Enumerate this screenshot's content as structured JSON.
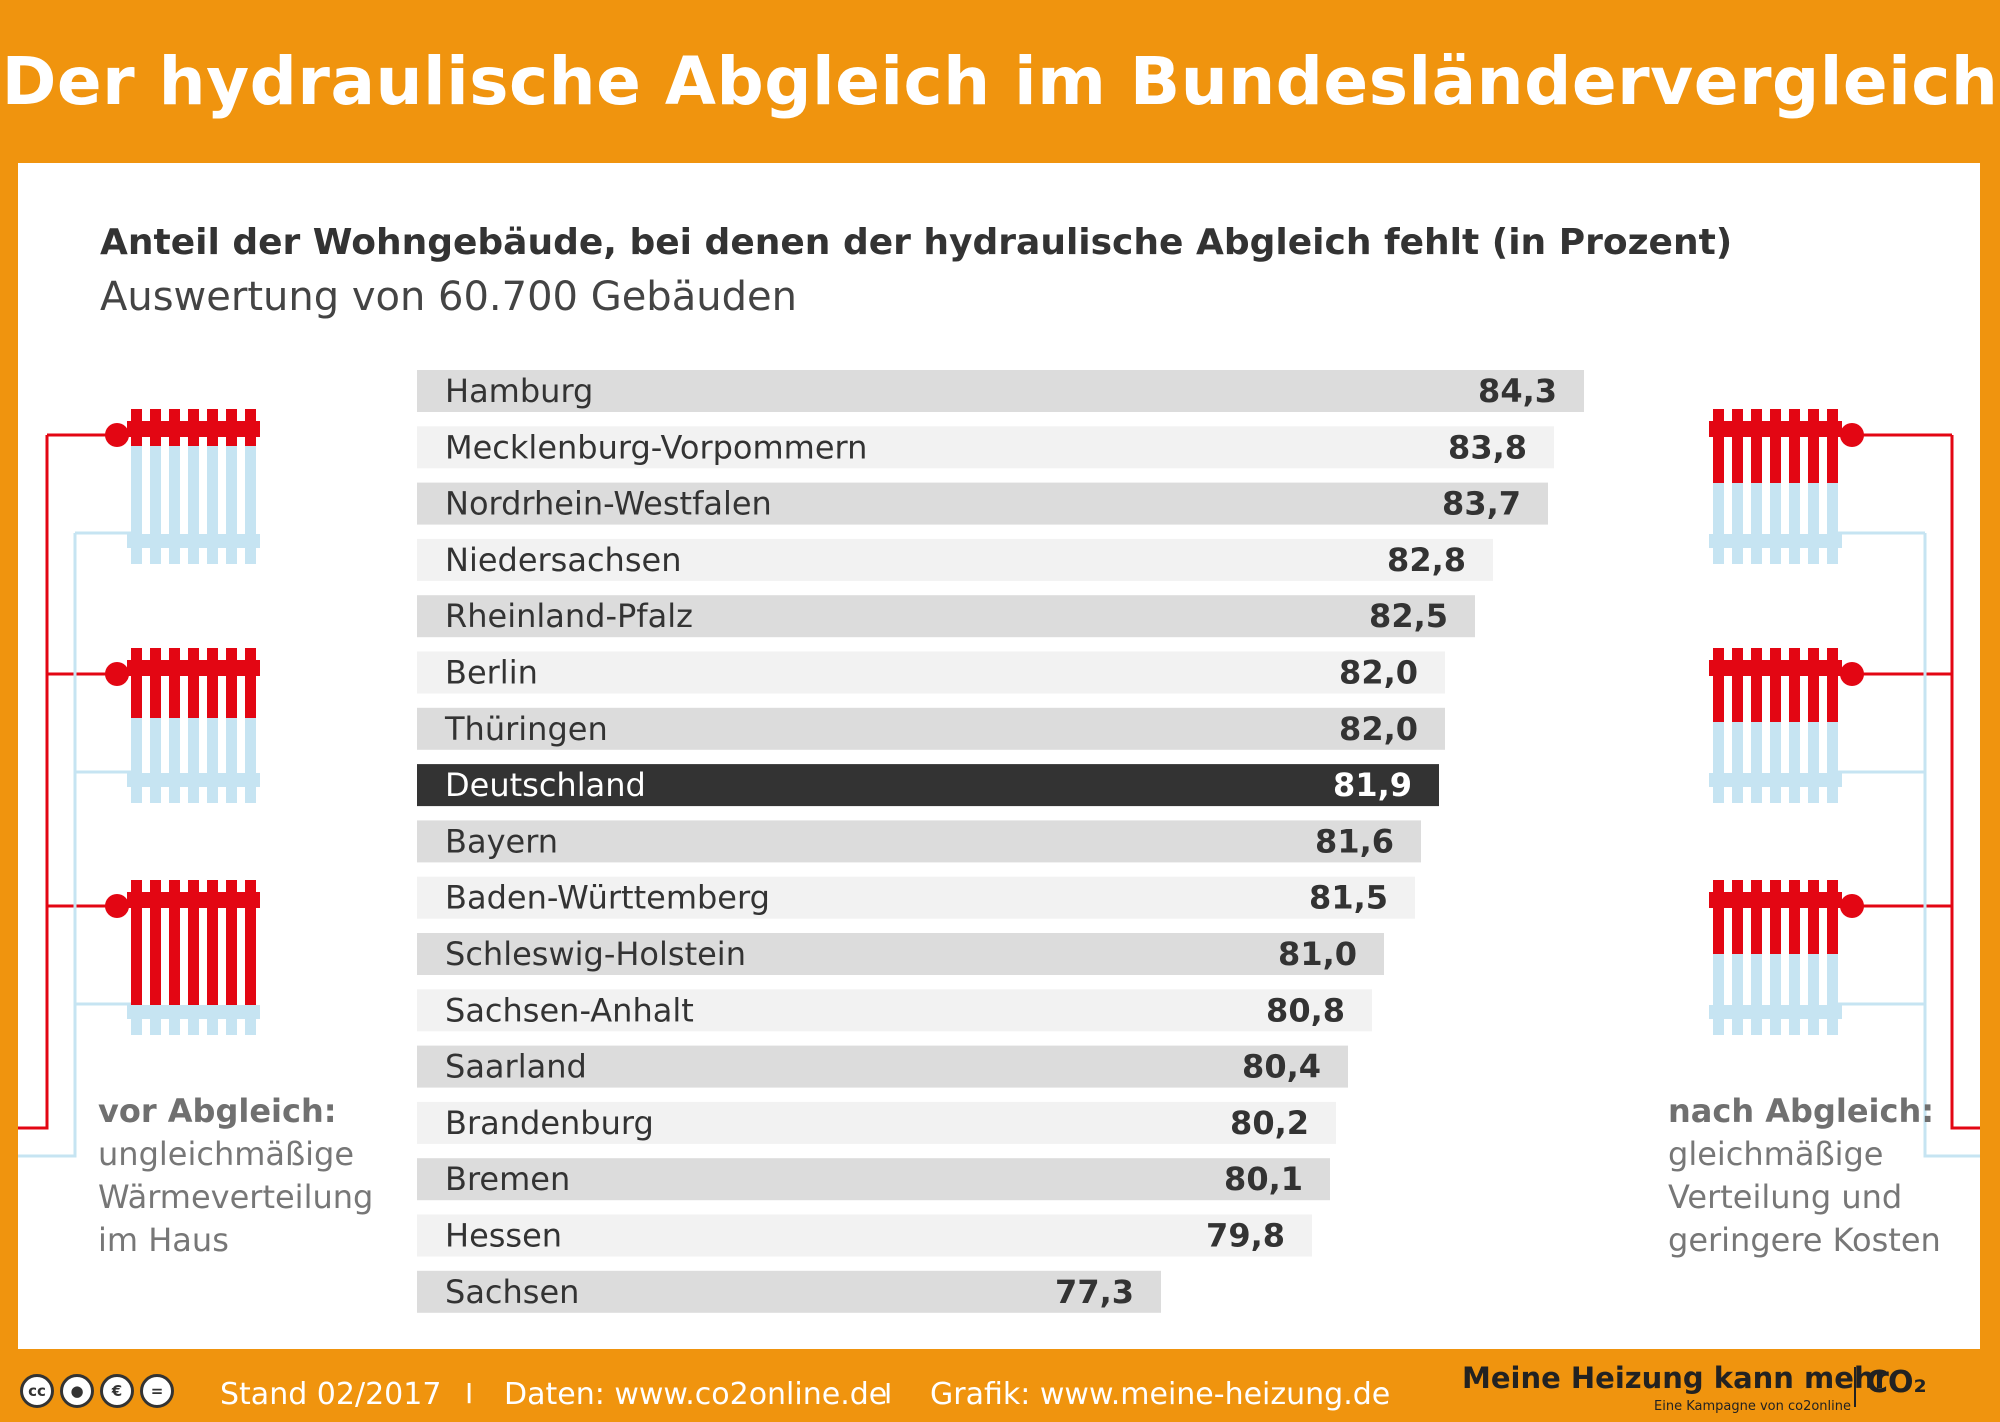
{
  "header": {
    "title": "Der hydraulische Abgleich im Bundesländervergleich"
  },
  "colors": {
    "orange": "#f0940e",
    "red": "#e30613",
    "light_blue": "#c6e4f2",
    "bar_gray": "#dcdcdc",
    "bar_light": "#f2f2f2",
    "highlight": "#333333"
  },
  "chart_data": {
    "type": "bar",
    "orientation": "horizontal",
    "title": "Anteil der Wohngebäude, bei denen der hydraulische Abgleich fehlt (in Prozent)",
    "subtitle": "Auswertung von 60.700 Gebäuden",
    "categories": [
      "Hamburg",
      "Mecklenburg-Vorpommern",
      "Nordrhein-Westfalen",
      "Niedersachsen",
      "Rheinland-Pfalz",
      "Berlin",
      "Thüringen",
      "Deutschland",
      "Bayern",
      "Baden-Württemberg",
      "Schleswig-Holstein",
      "Sachsen-Anhalt",
      "Saarland",
      "Brandenburg",
      "Bremen",
      "Hessen",
      "Sachsen"
    ],
    "values": [
      84.3,
      83.8,
      83.7,
      82.8,
      82.5,
      82.0,
      82.0,
      81.9,
      81.6,
      81.5,
      81.0,
      80.8,
      80.4,
      80.2,
      80.1,
      79.8,
      77.3
    ],
    "value_labels": [
      "84,3",
      "83,8",
      "83,7",
      "82,8",
      "82,5",
      "82,0",
      "82,0",
      "81,9",
      "81,6",
      "81,5",
      "81,0",
      "80,8",
      "80,4",
      "80,2",
      "80,1",
      "79,8",
      "77,3"
    ],
    "highlight": "Deutschland",
    "grid": false
  },
  "left_caption": {
    "head": "vor Abgleich:",
    "lines": [
      "ungleichmäßige",
      "Wärmeverteilung",
      "im Haus"
    ]
  },
  "right_caption": {
    "head": "nach Abgleich:",
    "lines": [
      "gleichmäßige",
      "Verteilung und",
      "geringere Kosten"
    ]
  },
  "footer": {
    "cc_icons": [
      "cc",
      "by",
      "nc",
      "nd"
    ],
    "stand": "Stand 02/2017",
    "sep": "I",
    "daten": "Daten: www.co2online.de",
    "grafik": "Grafik: www.meine-heizung.de",
    "brand_main": "Meine Heizung kann mehr",
    "brand_sub": "Eine Kampagne von co2online",
    "brand_logo": "CO₂"
  }
}
